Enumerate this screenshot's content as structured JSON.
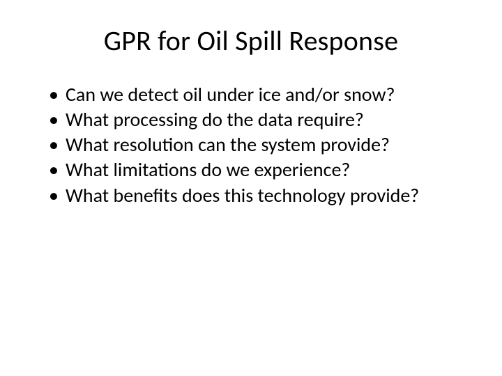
{
  "slide": {
    "title": "GPR for Oil Spill Response",
    "title_fontsize": 40,
    "body_fontsize": 28,
    "background_color": "#ffffff",
    "text_color": "#000000",
    "bullets": [
      "Can we detect oil under ice and/or snow?",
      "What processing do the data require?",
      "What resolution can the system provide?",
      "What limitations do we experience?",
      "What benefits does this technology provide?"
    ]
  }
}
